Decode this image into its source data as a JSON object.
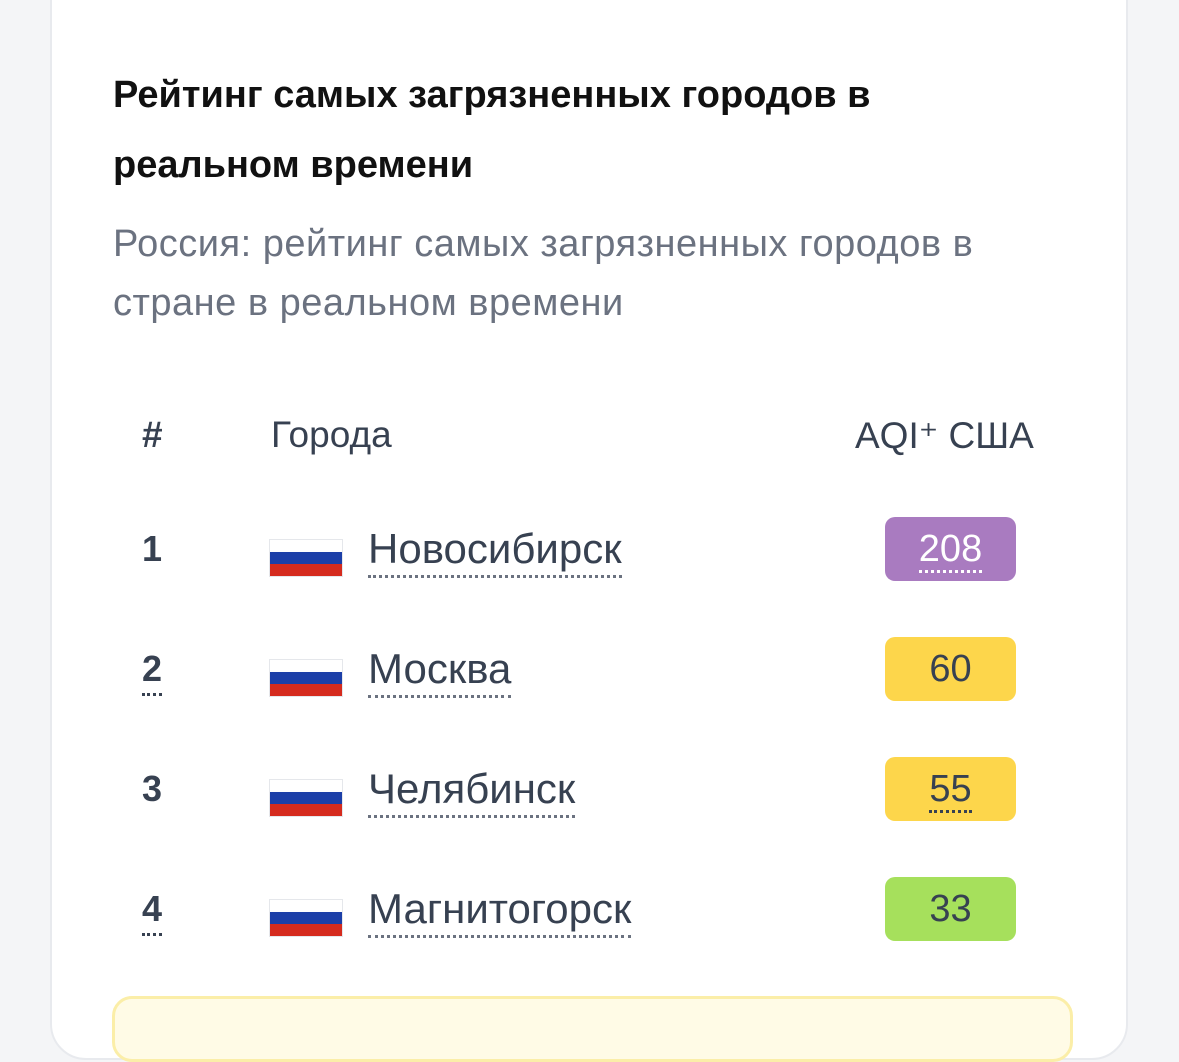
{
  "header": {
    "title": "Рейтинг самых загрязненных городов в реальном времени",
    "subtitle": "Россия: рейтинг самых загрязненных городов в стране в реальном времени"
  },
  "table": {
    "columns": [
      "#",
      "Города",
      "AQI⁺ США"
    ],
    "rows": [
      {
        "rank": 1,
        "city": "Новосибирск",
        "aqi": 208,
        "badge_color": "#a97bc0"
      },
      {
        "rank": 2,
        "city": "Москва",
        "aqi": 60,
        "badge_color": "#fdd64b"
      },
      {
        "rank": 3,
        "city": "Челябинск",
        "aqi": 55,
        "badge_color": "#fdd64b"
      },
      {
        "rank": 4,
        "city": "Магнитогорск",
        "aqi": 33,
        "badge_color": "#a6e05c"
      }
    ]
  }
}
